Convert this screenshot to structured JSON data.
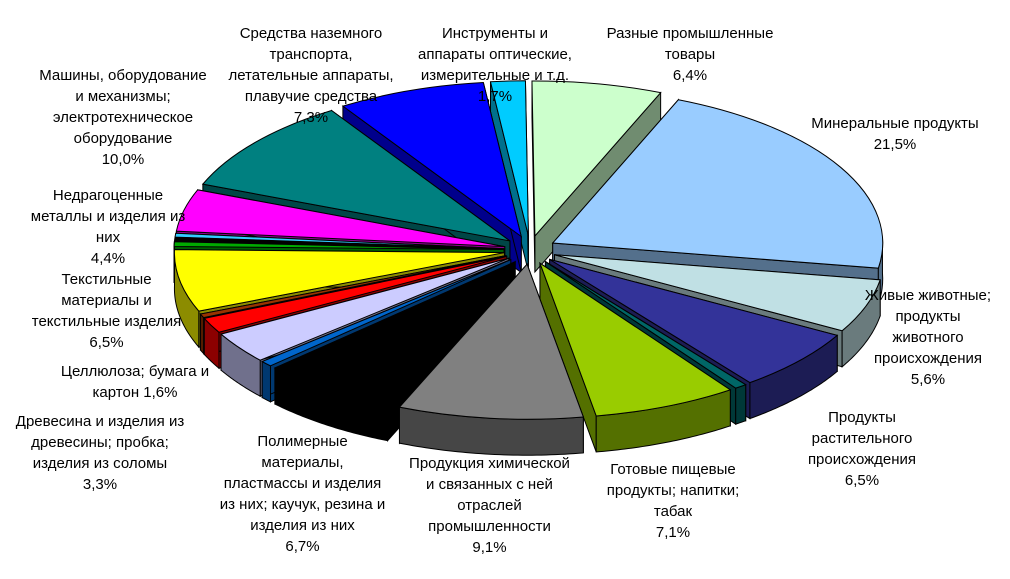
{
  "chart_data": {
    "type": "pie",
    "title": "",
    "style": "3d-exploded",
    "slices": [
      {
        "label": "Минеральные продукты",
        "value": "21,5%",
        "pct": 21.5,
        "color": "#99ccff"
      },
      {
        "label": "Живые животные; продукты животного происхождения",
        "value": "5,6%",
        "pct": 5.6,
        "color": "#c0e0e4"
      },
      {
        "label": "Продукты растительного происхождения",
        "value": "6,5%",
        "pct": 6.5,
        "color": "#333399"
      },
      {
        "label": "",
        "value": "",
        "pct": 0.6,
        "color": "#006666"
      },
      {
        "label": "Готовые пищевые продукты; напитки; табак",
        "value": "7,1%",
        "pct": 7.1,
        "color": "#99cc00"
      },
      {
        "label": "Продукция химической и связанных с ней отраслей промышленности",
        "value": "9,1%",
        "pct": 9.1,
        "color": "#808080"
      },
      {
        "label": "Полимерные материалы, пластмассы и изделия из них; каучук, резина и изделия из них",
        "value": "6,7%",
        "pct": 6.7,
        "color": "#000000"
      },
      {
        "label": "",
        "value": "",
        "pct": 0.6,
        "color": "#0066cc"
      },
      {
        "label": "Древесина и изделия из древесины; пробка; изделия из соломы",
        "value": "3,3%",
        "pct": 3.3,
        "color": "#ccccff"
      },
      {
        "label": "Целлюлоза; бумага и картон",
        "value": "1,6%",
        "pct": 1.6,
        "color": "#ff0000"
      },
      {
        "label": "",
        "value": "",
        "pct": 0.4,
        "color": "#993300"
      },
      {
        "label": "Текстильные материалы и текстильные изделия",
        "value": "6,5%",
        "pct": 6.5,
        "color": "#ffff00"
      },
      {
        "label": "",
        "value": "",
        "pct": 0.5,
        "color": "#00aa00"
      },
      {
        "label": "",
        "value": "",
        "pct": 0.4,
        "color": "#000000"
      },
      {
        "label": "",
        "value": "",
        "pct": 0.4,
        "color": "#33ccff"
      },
      {
        "label": "Недрагоценные металлы и изделия из них",
        "value": "4,4%",
        "pct": 4.4,
        "color": "#ff00ff"
      },
      {
        "label": "Машины, оборудование и механизмы; электротехническое оборудование",
        "value": "10,0%",
        "pct": 10.0,
        "color": "#008080"
      },
      {
        "label": "Средства наземного транспорта, летательные аппараты, плавучие средства",
        "value": "7,3%",
        "pct": 7.3,
        "color": "#0000ff"
      },
      {
        "label": "Инструменты и аппараты оптические, измерительные и т.д.",
        "value": "1,7%",
        "pct": 1.7,
        "color": "#00ccff"
      },
      {
        "label": "Разные промышленные товары",
        "value": "6,4%",
        "pct": 6.4,
        "color": "#ccffcc"
      }
    ]
  },
  "labels": [
    {
      "text": "Средства наземного\nтранспорта,\nлетательные аппараты,\nплавучие средства",
      "value": "7,3%"
    },
    {
      "text": "Инструменты и\nаппараты оптические,\nизмерительные и т.д.",
      "value": "1,7%"
    },
    {
      "text": "Разные промышленные\nтовары",
      "value": "6,4%"
    },
    {
      "text": "Минеральные продукты",
      "value": "21,5%"
    },
    {
      "text": "Машины, оборудование\nи механизмы;\nэлектротехническое\nоборудование",
      "value": "10,0%"
    },
    {
      "text": "Недрагоценные\nметаллы и изделия из\nних",
      "value": "4,4%"
    },
    {
      "text": "Текстильные\nматериалы и\nтекстильные изделия",
      "value": "6,5%"
    },
    {
      "text": "Целлюлоза; бумага и\nкартон 1,6%",
      "value": ""
    },
    {
      "text": "Древесина и изделия из\nдревесины; пробка;\nизделия из соломы",
      "value": "3,3%"
    },
    {
      "text": "Полимерные\nматериалы,\nпластмассы и изделия\nиз них; каучук, резина и\nизделия из них",
      "value": "6,7%"
    },
    {
      "text": "Продукция химической\nи связанных с ней\nотраслей\nпромышленности",
      "value": "9,1%"
    },
    {
      "text": "Готовые пищевые\nпродукты; напитки;\nтабак",
      "value": "7,1%"
    },
    {
      "text": "Продукты\nрастительного\nпроисхождения",
      "value": "6,5%"
    },
    {
      "text": "Живые животные;\nпродукты\nживотного\nпроисхождения",
      "value": "5,6%"
    }
  ]
}
